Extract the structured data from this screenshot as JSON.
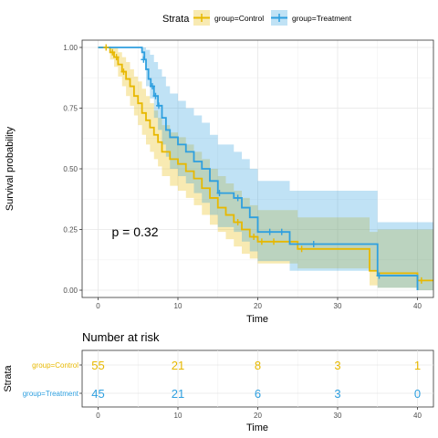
{
  "chart_data": [
    {
      "type": "line",
      "subtype": "kaplan-meier survival curve",
      "xlabel": "Time",
      "ylabel": "Survival probability",
      "xlim": [
        -2,
        42
      ],
      "ylim": [
        -0.03,
        1.03
      ],
      "x_ticks": [
        0,
        10,
        20,
        30,
        40
      ],
      "y_ticks": [
        0.0,
        0.25,
        0.5,
        0.75,
        1.0
      ],
      "y_tick_labels": [
        "0.00",
        "0.25",
        "0.50",
        "0.75",
        "1.00"
      ],
      "grid": true,
      "legend": {
        "title": "Strata",
        "placement": "top",
        "entries": [
          "group=Control",
          "group=Treatment"
        ]
      },
      "annotation": "p = 0.32",
      "annotation_position": {
        "x": 4,
        "y": 0.2
      },
      "series": [
        {
          "name": "group=Control",
          "color": "#E7B800",
          "steps": [
            [
              0,
              1.0
            ],
            [
              1.5,
              0.98
            ],
            [
              2,
              0.96
            ],
            [
              2.5,
              0.93
            ],
            [
              3,
              0.9
            ],
            [
              3.5,
              0.87
            ],
            [
              4,
              0.84
            ],
            [
              4.5,
              0.8
            ],
            [
              5,
              0.77
            ],
            [
              5.5,
              0.73
            ],
            [
              6,
              0.7
            ],
            [
              6.5,
              0.67
            ],
            [
              7,
              0.64
            ],
            [
              7.5,
              0.61
            ],
            [
              8,
              0.57
            ],
            [
              9,
              0.54
            ],
            [
              10,
              0.52
            ],
            [
              11,
              0.49
            ],
            [
              12,
              0.46
            ],
            [
              13,
              0.42
            ],
            [
              14,
              0.38
            ],
            [
              15,
              0.34
            ],
            [
              16,
              0.31
            ],
            [
              17,
              0.28
            ],
            [
              18,
              0.25
            ],
            [
              19,
              0.22
            ],
            [
              20,
              0.2
            ],
            [
              25,
              0.17
            ],
            [
              34,
              0.08
            ],
            [
              35,
              0.07
            ],
            [
              40,
              0.04
            ],
            [
              42,
              0.04
            ]
          ],
          "ci_upper": [
            [
              0,
              1.0
            ],
            [
              1.5,
              1.0
            ],
            [
              2.5,
              0.98
            ],
            [
              3,
              0.96
            ],
            [
              3.5,
              0.94
            ],
            [
              4,
              0.91
            ],
            [
              4.5,
              0.88
            ],
            [
              5,
              0.86
            ],
            [
              5.5,
              0.83
            ],
            [
              6,
              0.8
            ],
            [
              6.5,
              0.77
            ],
            [
              7,
              0.74
            ],
            [
              7.5,
              0.71
            ],
            [
              8,
              0.68
            ],
            [
              9,
              0.65
            ],
            [
              10,
              0.63
            ],
            [
              11,
              0.6
            ],
            [
              12,
              0.57
            ],
            [
              13,
              0.54
            ],
            [
              14,
              0.5
            ],
            [
              15,
              0.47
            ],
            [
              16,
              0.44
            ],
            [
              17,
              0.41
            ],
            [
              18,
              0.38
            ],
            [
              19,
              0.35
            ],
            [
              20,
              0.33
            ],
            [
              25,
              0.3
            ],
            [
              34,
              0.24
            ],
            [
              35,
              0.25
            ],
            [
              42,
              0.25
            ]
          ],
          "ci_lower": [
            [
              0,
              1.0
            ],
            [
              1.5,
              0.95
            ],
            [
              2,
              0.92
            ],
            [
              2.5,
              0.88
            ],
            [
              3,
              0.84
            ],
            [
              3.5,
              0.8
            ],
            [
              4,
              0.76
            ],
            [
              4.5,
              0.72
            ],
            [
              5,
              0.68
            ],
            [
              5.5,
              0.64
            ],
            [
              6,
              0.6
            ],
            [
              6.5,
              0.57
            ],
            [
              7,
              0.54
            ],
            [
              7.5,
              0.51
            ],
            [
              8,
              0.47
            ],
            [
              9,
              0.43
            ],
            [
              10,
              0.41
            ],
            [
              11,
              0.38
            ],
            [
              12,
              0.35
            ],
            [
              13,
              0.31
            ],
            [
              14,
              0.27
            ],
            [
              15,
              0.24
            ],
            [
              16,
              0.21
            ],
            [
              17,
              0.18
            ],
            [
              18,
              0.15
            ],
            [
              19,
              0.13
            ],
            [
              20,
              0.11
            ],
            [
              25,
              0.09
            ],
            [
              34,
              0.02
            ],
            [
              35,
              0.01
            ],
            [
              40,
              0.0
            ],
            [
              42,
              0.0
            ]
          ],
          "censored": [
            [
              1,
              1.0
            ],
            [
              1.8,
              0.98
            ],
            [
              2.3,
              0.96
            ],
            [
              3.2,
              0.9
            ],
            [
              17.5,
              0.28
            ],
            [
              19.5,
              0.22
            ],
            [
              20.5,
              0.2
            ],
            [
              22,
              0.2
            ],
            [
              25.5,
              0.17
            ],
            [
              40.5,
              0.04
            ]
          ]
        },
        {
          "name": "group=Treatment",
          "color": "#2E9FDF",
          "steps": [
            [
              0,
              1.0
            ],
            [
              5.5,
              0.98
            ],
            [
              5.8,
              0.95
            ],
            [
              6,
              0.91
            ],
            [
              6.3,
              0.87
            ],
            [
              6.6,
              0.84
            ],
            [
              7,
              0.8
            ],
            [
              7.5,
              0.76
            ],
            [
              8,
              0.71
            ],
            [
              8.5,
              0.66
            ],
            [
              9,
              0.63
            ],
            [
              10,
              0.6
            ],
            [
              11,
              0.57
            ],
            [
              12,
              0.53
            ],
            [
              13,
              0.5
            ],
            [
              14,
              0.45
            ],
            [
              15,
              0.4
            ],
            [
              17,
              0.38
            ],
            [
              18,
              0.34
            ],
            [
              19,
              0.3
            ],
            [
              20,
              0.24
            ],
            [
              23,
              0.24
            ],
            [
              24,
              0.19
            ],
            [
              30,
              0.19
            ],
            [
              35,
              0.06
            ],
            [
              40,
              0.0
            ]
          ],
          "ci_upper": [
            [
              0,
              1.0
            ],
            [
              5.5,
              1.0
            ],
            [
              6,
              0.99
            ],
            [
              6.5,
              0.97
            ],
            [
              7,
              0.94
            ],
            [
              7.5,
              0.91
            ],
            [
              8,
              0.88
            ],
            [
              8.5,
              0.84
            ],
            [
              9,
              0.81
            ],
            [
              10,
              0.78
            ],
            [
              11,
              0.75
            ],
            [
              12,
              0.72
            ],
            [
              13,
              0.69
            ],
            [
              14,
              0.64
            ],
            [
              15,
              0.6
            ],
            [
              17,
              0.57
            ],
            [
              18,
              0.54
            ],
            [
              19,
              0.5
            ],
            [
              20,
              0.45
            ],
            [
              24,
              0.41
            ],
            [
              30,
              0.41
            ],
            [
              35,
              0.28
            ],
            [
              42,
              0.28
            ]
          ],
          "ci_lower": [
            [
              0,
              1.0
            ],
            [
              5.5,
              0.95
            ],
            [
              6,
              0.84
            ],
            [
              6.5,
              0.79
            ],
            [
              7,
              0.71
            ],
            [
              7.5,
              0.66
            ],
            [
              8,
              0.6
            ],
            [
              8.5,
              0.55
            ],
            [
              9,
              0.5
            ],
            [
              10,
              0.47
            ],
            [
              11,
              0.44
            ],
            [
              12,
              0.4
            ],
            [
              13,
              0.36
            ],
            [
              14,
              0.31
            ],
            [
              15,
              0.26
            ],
            [
              17,
              0.24
            ],
            [
              18,
              0.2
            ],
            [
              19,
              0.16
            ],
            [
              20,
              0.12
            ],
            [
              24,
              0.08
            ],
            [
              30,
              0.08
            ],
            [
              35,
              0.01
            ],
            [
              40,
              0.0
            ],
            [
              42,
              0.0
            ]
          ],
          "censored": [
            [
              5.7,
              0.95
            ],
            [
              6.8,
              0.84
            ],
            [
              7.2,
              0.8
            ],
            [
              7.6,
              0.76
            ],
            [
              15.2,
              0.4
            ],
            [
              17.5,
              0.38
            ],
            [
              21.5,
              0.24
            ],
            [
              23,
              0.24
            ],
            [
              27,
              0.19
            ],
            [
              35.2,
              0.06
            ]
          ]
        }
      ]
    },
    {
      "type": "table",
      "title": "Number at risk",
      "xlabel": "Time",
      "ylabel": "Strata",
      "x_ticks": [
        0,
        10,
        20,
        30,
        40
      ],
      "rows": [
        {
          "name": "group=Control",
          "color": "#E7B800",
          "values": [
            55,
            21,
            8,
            3,
            1
          ]
        },
        {
          "name": "group=Treatment",
          "color": "#2E9FDF",
          "values": [
            45,
            21,
            6,
            3,
            0
          ]
        }
      ]
    }
  ]
}
